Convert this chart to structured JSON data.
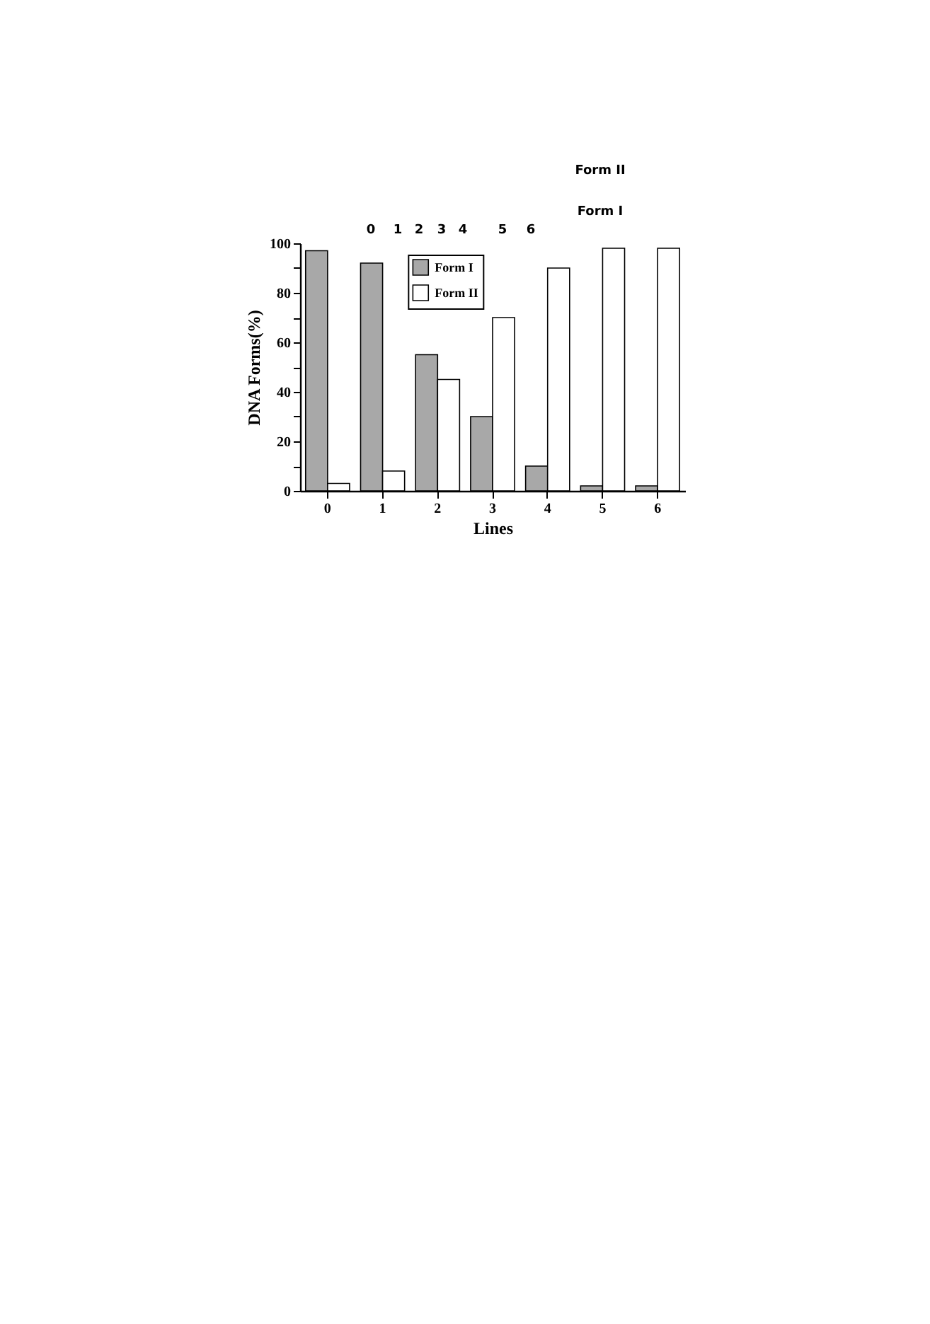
{
  "chart_data": {
    "type": "bar",
    "xlabel": "Lines",
    "ylabel": "DNA Forms(%)",
    "categories": [
      "0",
      "1",
      "2",
      "3",
      "4",
      "5",
      "6"
    ],
    "series": [
      {
        "name": "Form I",
        "color": "#a8a8a8",
        "values": [
          97,
          92,
          55,
          30,
          10,
          2,
          2
        ]
      },
      {
        "name": "Form II",
        "color": "#ffffff",
        "values": [
          3,
          8,
          45,
          70,
          90,
          98,
          98
        ]
      }
    ],
    "ylim": [
      0,
      100
    ],
    "yticks": [
      0,
      {
        "value": 10,
        "label": null
      },
      20,
      {
        "value": 30,
        "label": null
      },
      40,
      {
        "value": 50,
        "label": null
      },
      60,
      {
        "value": 70,
        "label": null
      },
      80,
      {
        "value": 90,
        "label": null
      },
      100
    ],
    "grid": false,
    "legend": "top",
    "annotations": [
      "0",
      "1",
      "2",
      "3",
      "4",
      "5",
      "6",
      "Form II",
      "Form I"
    ]
  }
}
